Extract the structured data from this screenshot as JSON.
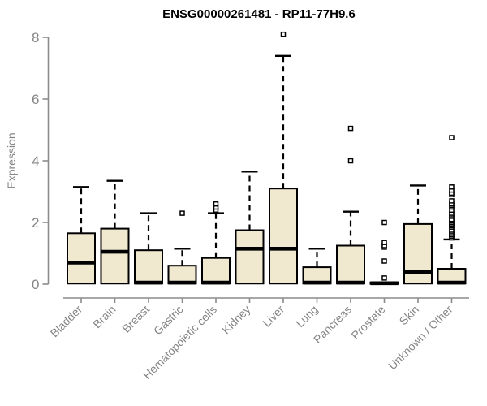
{
  "page": {
    "background": "#FFFFFF"
  },
  "chart_data": {
    "type": "box",
    "title": "ENSG00000261481 - RP11-77H9.6",
    "ylabel": "Expression",
    "xlabel": "",
    "ylim": [
      0,
      8.2
    ],
    "yticks": [
      0,
      2,
      4,
      6,
      8
    ],
    "grid": false,
    "legend": false,
    "categories": [
      "Bladder",
      "Brain",
      "Breast",
      "Gastric",
      "Hematopoietic cells",
      "Kidney",
      "Liver",
      "Lung",
      "Pancreas",
      "Prostate",
      "Skin",
      "Unknown / Other"
    ],
    "boxes": [
      {
        "category": "Bladder",
        "low": 0,
        "q1": 0.02,
        "median": 0.7,
        "q3": 1.65,
        "high": 3.15,
        "outliers": []
      },
      {
        "category": "Brain",
        "low": 0,
        "q1": 0.02,
        "median": 1.05,
        "q3": 1.8,
        "high": 3.35,
        "outliers": []
      },
      {
        "category": "Breast",
        "low": 0,
        "q1": 0.02,
        "median": 0.05,
        "q3": 1.1,
        "high": 2.3,
        "outliers": []
      },
      {
        "category": "Gastric",
        "low": 0,
        "q1": 0.02,
        "median": 0.05,
        "q3": 0.6,
        "high": 1.15,
        "outliers": [
          2.3
        ]
      },
      {
        "category": "Hematopoietic cells",
        "low": 0,
        "q1": 0.02,
        "median": 0.05,
        "q3": 0.85,
        "high": 2.3,
        "outliers": [
          2.4,
          2.5,
          2.6
        ]
      },
      {
        "category": "Kidney",
        "low": 0,
        "q1": 0.02,
        "median": 1.15,
        "q3": 1.75,
        "high": 3.65,
        "outliers": []
      },
      {
        "category": "Liver",
        "low": 0,
        "q1": 0.02,
        "median": 1.15,
        "q3": 3.1,
        "high": 7.4,
        "outliers": [
          8.1
        ]
      },
      {
        "category": "Lung",
        "low": 0,
        "q1": 0.02,
        "median": 0.05,
        "q3": 0.55,
        "high": 1.15,
        "outliers": []
      },
      {
        "category": "Pancreas",
        "low": 0,
        "q1": 0.02,
        "median": 0.05,
        "q3": 1.25,
        "high": 2.35,
        "outliers": [
          4.0,
          5.05
        ]
      },
      {
        "category": "Prostate",
        "low": 0,
        "q1": 0.01,
        "median": 0.03,
        "q3": 0.06,
        "high": 0.06,
        "outliers": [
          0.2,
          0.75,
          1.2,
          1.25,
          1.35,
          2.0
        ]
      },
      {
        "category": "Skin",
        "low": 0,
        "q1": 0.02,
        "median": 0.4,
        "q3": 1.95,
        "high": 3.2,
        "outliers": []
      },
      {
        "category": "Unknown / Other",
        "low": 0,
        "q1": 0.02,
        "median": 0.05,
        "q3": 0.5,
        "high": 1.45,
        "outliers": [
          1.5,
          1.55,
          1.6,
          1.65,
          1.7,
          1.75,
          1.85,
          1.9,
          1.95,
          2.0,
          2.05,
          2.1,
          2.2,
          2.25,
          2.3,
          2.4,
          2.5,
          2.55,
          2.6,
          2.7,
          2.9,
          2.95,
          3.05,
          3.15,
          4.75
        ]
      }
    ],
    "colors": {
      "box_fill": "#F0E9D0",
      "box_stroke": "#000000",
      "median": "#000000",
      "whisker": "#000000",
      "outlier_stroke": "#000000",
      "axis": "#8C8C8C",
      "tick_label": "#858585",
      "title": "#000000",
      "background": "#FFFFFF"
    }
  }
}
